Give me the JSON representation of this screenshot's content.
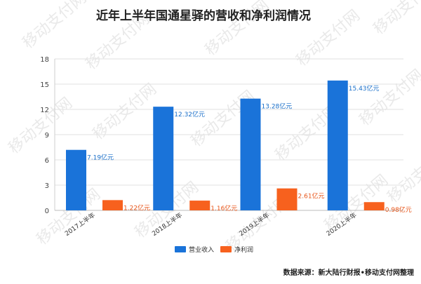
{
  "chart_data": {
    "type": "bar",
    "title": "近年上半年国通星驿的营收和净利润情况",
    "categories": [
      "2017上半年",
      "2018上半年",
      "2019上半年",
      "2020上半年"
    ],
    "series": [
      {
        "name": "营业收入",
        "values": [
          7.19,
          12.32,
          13.28,
          15.43
        ],
        "color": "#1a73d9",
        "labels": [
          "7.19亿元",
          "12.32亿元",
          "13.28亿元",
          "15.43亿元"
        ],
        "label_color": "#1a6fc9"
      },
      {
        "name": "净利润",
        "values": [
          1.22,
          1.16,
          2.61,
          0.98
        ],
        "color": "#f7611e",
        "labels": [
          "1.22亿元",
          "1.16亿元",
          "2.61亿元",
          "0.98亿元"
        ],
        "label_color": "#e8561a"
      }
    ],
    "ylim": [
      0,
      18
    ],
    "yticks": [
      0,
      3,
      6,
      9,
      12,
      15,
      18
    ],
    "grid": true,
    "legend": "bottom-center"
  },
  "source": "数据来源：新大陆行财报•移动支付网整理",
  "watermark": "移动支付网"
}
